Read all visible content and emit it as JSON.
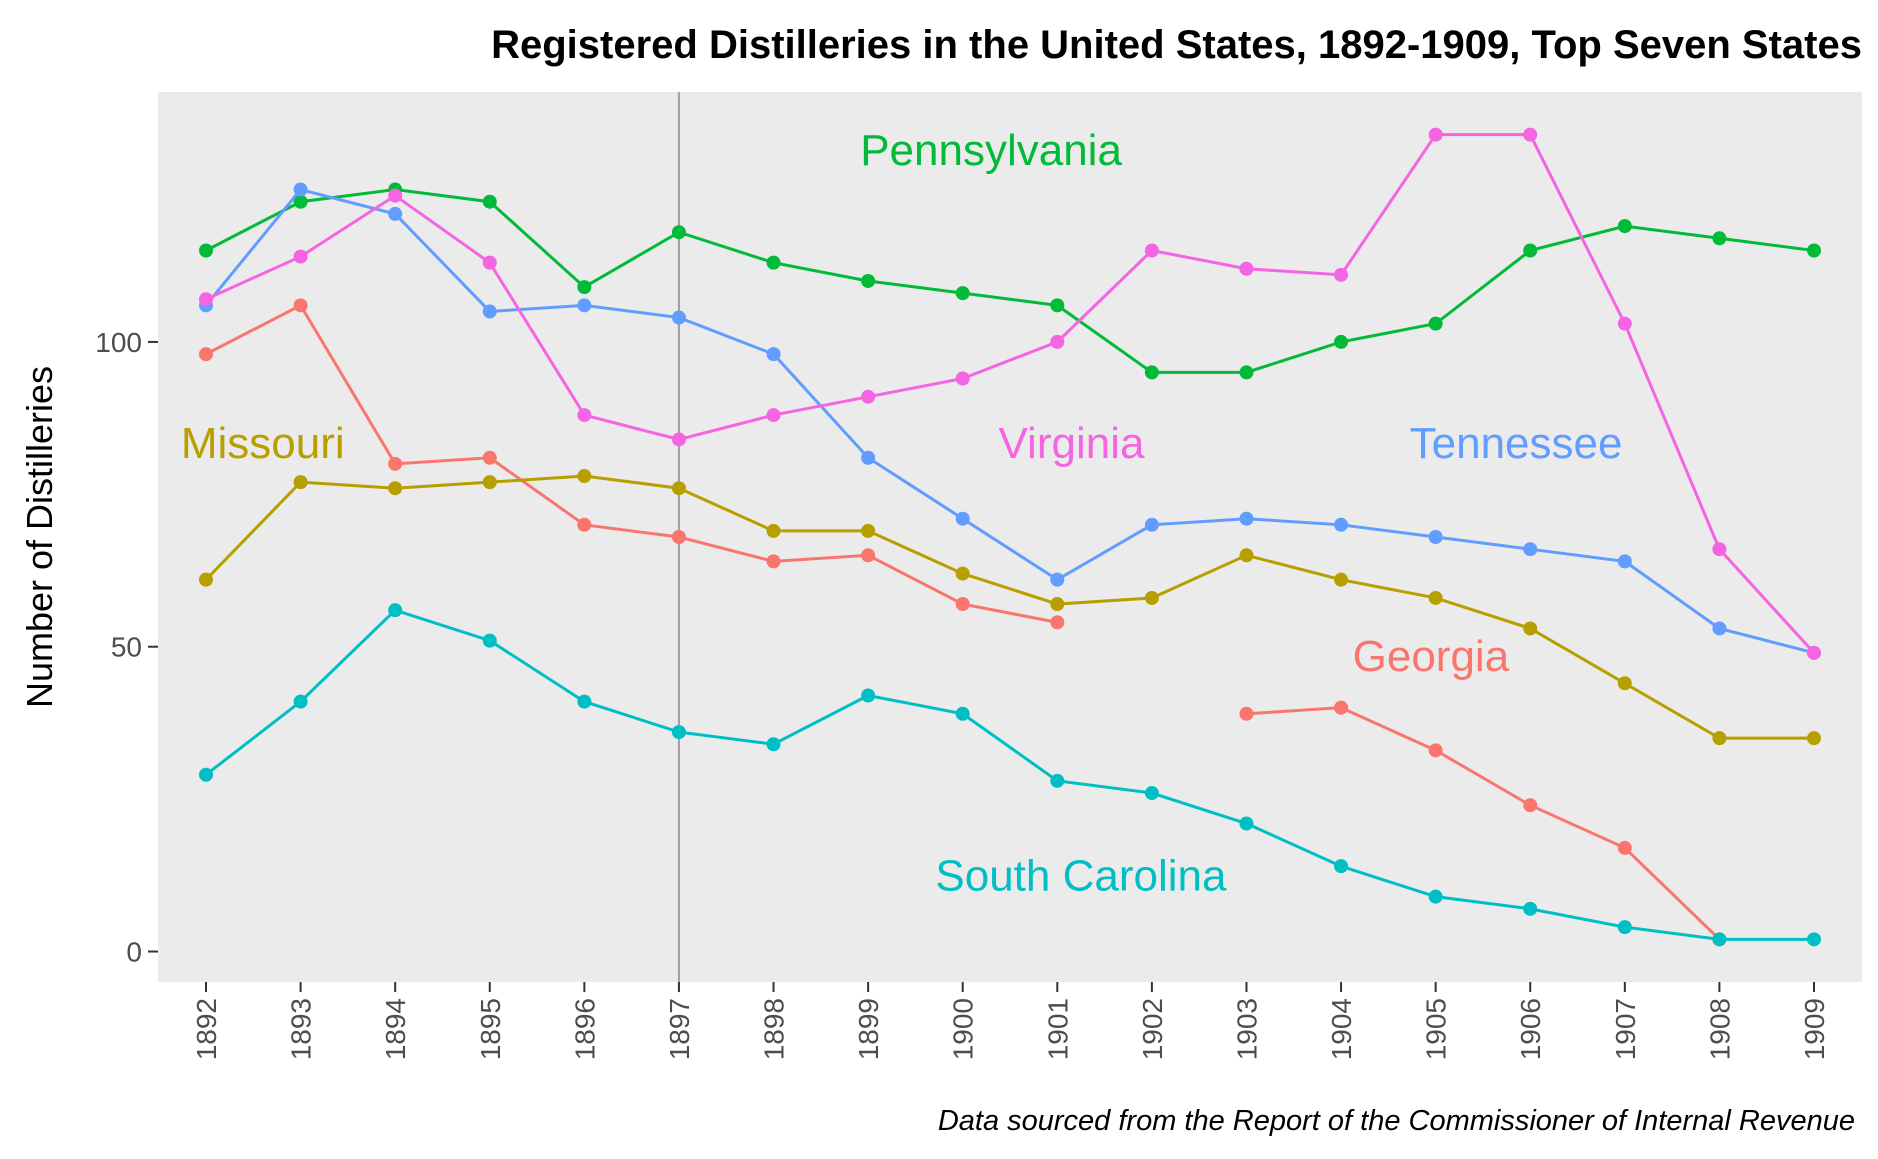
{
  "chart_data": {
    "type": "line",
    "title": "Registered Distilleries in the United States, 1892-1909, Top Seven States",
    "caption": "Data sourced from the Report of the Commissioner of Internal Revenue",
    "ylabel": "Number of Distilleries",
    "xlabel": "",
    "x": [
      "1892",
      "1893",
      "1894",
      "1895",
      "1896",
      "1897",
      "1898",
      "1899",
      "1900",
      "1901",
      "1902",
      "1903",
      "1904",
      "1905",
      "1906",
      "1907",
      "1908",
      "1909"
    ],
    "y_ticks": [
      0,
      50,
      100
    ],
    "ylim": [
      -5,
      141
    ],
    "grid": false,
    "background": "#ebebeb",
    "reference_line_x": "1897",
    "legend": "none (direct labels)",
    "series": [
      {
        "name": "Georgia",
        "color": "#f8766d",
        "values": [
          98,
          106,
          80,
          81,
          70,
          68,
          64,
          65,
          57,
          54,
          null,
          39,
          40,
          33,
          24,
          17,
          2,
          null
        ]
      },
      {
        "name": "Missouri",
        "color": "#b79f00",
        "values": [
          61,
          77,
          76,
          77,
          78,
          76,
          69,
          69,
          62,
          57,
          58,
          65,
          61,
          58,
          53,
          44,
          35,
          35
        ]
      },
      {
        "name": "Pennsylvania",
        "color": "#00ba38",
        "values": [
          115,
          123,
          125,
          123,
          109,
          118,
          113,
          110,
          108,
          106,
          95,
          95,
          100,
          103,
          115,
          119,
          117,
          115
        ]
      },
      {
        "name": "South Carolina",
        "color": "#00bfc4",
        "values": [
          29,
          41,
          56,
          51,
          41,
          36,
          34,
          42,
          39,
          28,
          26,
          21,
          14,
          9,
          7,
          4,
          2,
          2
        ]
      },
      {
        "name": "Tennessee",
        "color": "#619cff",
        "values": [
          106,
          125,
          121,
          105,
          106,
          104,
          98,
          81,
          71,
          61,
          70,
          71,
          70,
          68,
          66,
          64,
          53,
          49
        ]
      },
      {
        "name": "Virginia",
        "color": "#f564e3",
        "values": [
          107,
          114,
          124,
          113,
          88,
          84,
          88,
          91,
          94,
          100,
          115,
          112,
          111,
          134,
          134,
          103,
          66,
          49
        ]
      }
    ]
  }
}
